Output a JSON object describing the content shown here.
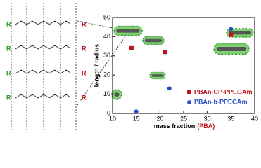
{
  "structure": {
    "left_group": "R",
    "right_group": "R"
  },
  "chart_data": {
    "type": "scatter",
    "xlabel": "mass fraction",
    "xlabel_suffix": "(PBA)",
    "ylabel": "length / radius",
    "xlim": [
      10,
      40
    ],
    "xticks": [
      10,
      15,
      20,
      25,
      30,
      35,
      40
    ],
    "ylim": [
      0,
      50
    ],
    "yticks": [
      0,
      10,
      20,
      30,
      40,
      50
    ],
    "series": [
      {
        "name": "PBAn-CP-PPEGAm",
        "color": "#c0141c",
        "marker": "square",
        "x": [
          14,
          21,
          35
        ],
        "values": [
          34,
          32,
          41
        ]
      },
      {
        "name": "PBAn-b-PPEGAm",
        "color": "#2a4fc9",
        "marker": "circle",
        "x": [
          35,
          22,
          15
        ],
        "values": [
          44,
          13,
          1
        ]
      }
    ]
  }
}
